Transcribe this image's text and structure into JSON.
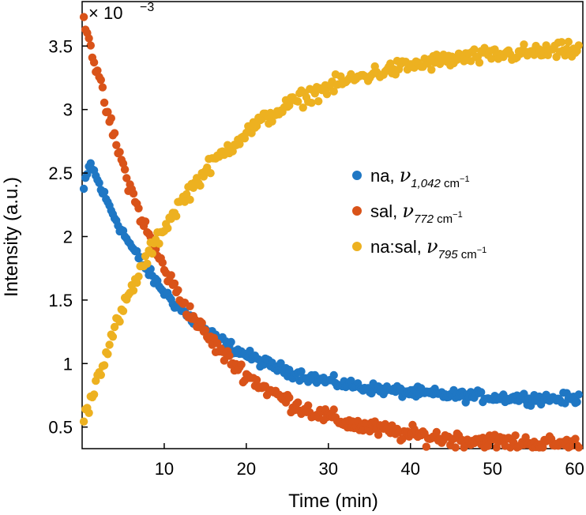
{
  "chart_data": {
    "type": "scatter",
    "title": "",
    "xlabel": "Time (min)",
    "ylabel": "Intensity (a.u.)",
    "y_scale_prefix": "× 10",
    "y_scale_exponent": "−3",
    "xlim": [
      0,
      61
    ],
    "ylim": [
      0.33,
      3.85
    ],
    "grid": false,
    "legend_position": "center-right",
    "xticks": [
      10,
      20,
      30,
      40,
      50,
      60
    ],
    "xtick_labels": [
      "10",
      "20",
      "30",
      "40",
      "50",
      "60"
    ],
    "yticks": [
      0.5,
      1.0,
      1.5,
      2.0,
      2.5,
      3.0,
      3.5
    ],
    "ytick_labels": [
      "0.5",
      "1",
      "1.5",
      "2",
      "2.5",
      "3",
      "3.5"
    ],
    "series": [
      {
        "name": "na",
        "legend_label": "na,",
        "symbol": "ν",
        "subscript": "1,042",
        "unit": "cm",
        "unit_exponent": "−1",
        "color": "#1f77c4",
        "model": {
          "kind": "decay_after_peak",
          "start": 2.32,
          "peak": 2.58,
          "peak_t": 1.0,
          "plateau": 0.71,
          "tau": 11.5
        },
        "noise": 0.03,
        "x_start": 0.2,
        "x_end": 60.5,
        "points": 290
      },
      {
        "name": "sal",
        "legend_label": "sal,",
        "symbol": "ν",
        "subscript": "772",
        "unit": "cm",
        "unit_exponent": "−1",
        "color": "#d95319",
        "model": {
          "kind": "exp_decay",
          "initial": 3.82,
          "plateau": 0.35,
          "tau": 11.0
        },
        "noise": 0.045,
        "x_start": 0.2,
        "x_end": 60.5,
        "points": 290
      },
      {
        "name": "na:sal",
        "legend_label": "na:sal,",
        "symbol": "ν",
        "subscript": "795",
        "unit": "cm",
        "unit_exponent": "−1",
        "color": "#edb120",
        "model": {
          "kind": "exp_rise",
          "initial": 0.5,
          "plateau": 3.5,
          "tau": 13.5
        },
        "noise": 0.045,
        "x_start": 0.2,
        "x_end": 60.5,
        "points": 290
      }
    ]
  }
}
